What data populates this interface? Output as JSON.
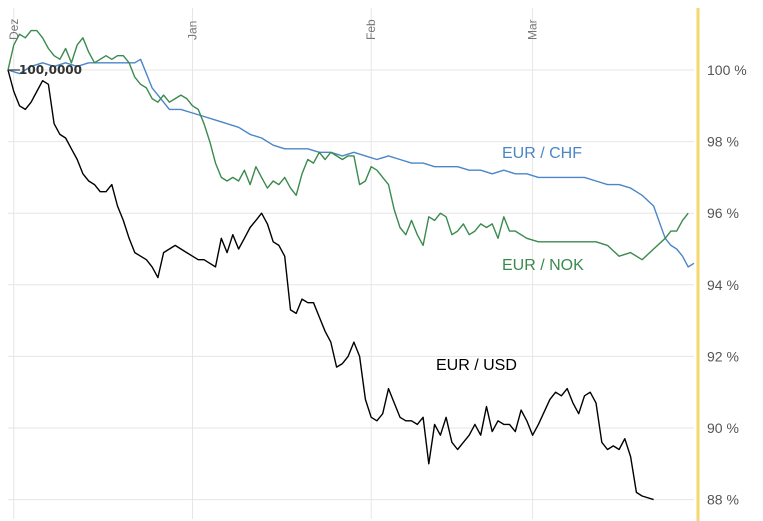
{
  "chart_data": {
    "type": "line",
    "y_unit": "%",
    "ylim": [
      87.5,
      101.5
    ],
    "yticks": [
      {
        "value": 100,
        "label": "100 %"
      },
      {
        "value": 98,
        "label": "98 %"
      },
      {
        "value": 96,
        "label": "96 %"
      },
      {
        "value": 94,
        "label": "94 %"
      },
      {
        "value": 92,
        "label": "92 %"
      },
      {
        "value": 90,
        "label": "90 %"
      },
      {
        "value": 88,
        "label": "88 %"
      }
    ],
    "x_month_labels": [
      {
        "day": 1,
        "label": "Dez"
      },
      {
        "day": 32,
        "label": "Jan"
      },
      {
        "day": 63,
        "label": "Feb"
      },
      {
        "day": 91,
        "label": "Mar"
      }
    ],
    "x_range_days": [
      0,
      119
    ],
    "start_value_label": "100,0000",
    "grid": true,
    "highlight_line_color": "#f5d76e",
    "series": [
      {
        "name": "EUR / CHF",
        "color": "#4a86c8",
        "points": [
          [
            0,
            100
          ],
          [
            2,
            99.9
          ],
          [
            4,
            100.1
          ],
          [
            6,
            100.2
          ],
          [
            8,
            100.1
          ],
          [
            10,
            100.2
          ],
          [
            12,
            100.1
          ],
          [
            14,
            100.2
          ],
          [
            16,
            100.2
          ],
          [
            18,
            100.2
          ],
          [
            20,
            100.2
          ],
          [
            22,
            100.2
          ],
          [
            23,
            100.3
          ],
          [
            24,
            99.9
          ],
          [
            25,
            99.5
          ],
          [
            26,
            99.3
          ],
          [
            27,
            99.1
          ],
          [
            28,
            98.9
          ],
          [
            30,
            98.9
          ],
          [
            32,
            98.8
          ],
          [
            34,
            98.7
          ],
          [
            36,
            98.6
          ],
          [
            38,
            98.5
          ],
          [
            40,
            98.4
          ],
          [
            42,
            98.2
          ],
          [
            44,
            98.1
          ],
          [
            46,
            97.9
          ],
          [
            48,
            97.8
          ],
          [
            50,
            97.8
          ],
          [
            52,
            97.8
          ],
          [
            54,
            97.7
          ],
          [
            56,
            97.7
          ],
          [
            58,
            97.6
          ],
          [
            60,
            97.7
          ],
          [
            62,
            97.6
          ],
          [
            64,
            97.5
          ],
          [
            66,
            97.6
          ],
          [
            68,
            97.5
          ],
          [
            70,
            97.4
          ],
          [
            72,
            97.4
          ],
          [
            74,
            97.3
          ],
          [
            76,
            97.3
          ],
          [
            78,
            97.3
          ],
          [
            80,
            97.2
          ],
          [
            82,
            97.2
          ],
          [
            84,
            97.1
          ],
          [
            86,
            97.2
          ],
          [
            88,
            97.1
          ],
          [
            90,
            97.1
          ],
          [
            92,
            97.0
          ],
          [
            94,
            97.0
          ],
          [
            96,
            97.0
          ],
          [
            98,
            97.0
          ],
          [
            100,
            97.0
          ],
          [
            102,
            96.9
          ],
          [
            104,
            96.8
          ],
          [
            106,
            96.8
          ],
          [
            108,
            96.7
          ],
          [
            110,
            96.5
          ],
          [
            112,
            96.2
          ],
          [
            114,
            95.3
          ],
          [
            115,
            95.1
          ],
          [
            116,
            95.0
          ],
          [
            117,
            94.8
          ],
          [
            118,
            94.5
          ],
          [
            119,
            94.6
          ]
        ]
      },
      {
        "name": "EUR / NOK",
        "color": "#3a8a4e",
        "points": [
          [
            0,
            100
          ],
          [
            1,
            100.7
          ],
          [
            2,
            101
          ],
          [
            3,
            100.9
          ],
          [
            4,
            101.1
          ],
          [
            5,
            101.1
          ],
          [
            6,
            100.9
          ],
          [
            7,
            100.6
          ],
          [
            8,
            100.4
          ],
          [
            9,
            100.3
          ],
          [
            10,
            100.6
          ],
          [
            11,
            100.2
          ],
          [
            12,
            100.7
          ],
          [
            13,
            100.9
          ],
          [
            14,
            100.5
          ],
          [
            15,
            100.2
          ],
          [
            16,
            100.3
          ],
          [
            17,
            100.4
          ],
          [
            18,
            100.3
          ],
          [
            19,
            100.4
          ],
          [
            20,
            100.4
          ],
          [
            21,
            100.2
          ],
          [
            22,
            99.8
          ],
          [
            23,
            99.6
          ],
          [
            24,
            99.5
          ],
          [
            25,
            99.2
          ],
          [
            26,
            99.1
          ],
          [
            27,
            99.3
          ],
          [
            28,
            99.1
          ],
          [
            29,
            99.2
          ],
          [
            30,
            99.3
          ],
          [
            31,
            99.2
          ],
          [
            32,
            99.0
          ],
          [
            33,
            98.9
          ],
          [
            34,
            98.5
          ],
          [
            35,
            98.0
          ],
          [
            36,
            97.4
          ],
          [
            37,
            97.0
          ],
          [
            38,
            96.9
          ],
          [
            39,
            97.0
          ],
          [
            40,
            96.9
          ],
          [
            41,
            97.2
          ],
          [
            42,
            96.8
          ],
          [
            43,
            97.3
          ],
          [
            44,
            97.0
          ],
          [
            45,
            96.7
          ],
          [
            46,
            96.9
          ],
          [
            47,
            96.8
          ],
          [
            48,
            97.0
          ],
          [
            49,
            96.7
          ],
          [
            50,
            96.5
          ],
          [
            51,
            97.1
          ],
          [
            52,
            97.5
          ],
          [
            53,
            97.4
          ],
          [
            54,
            97.7
          ],
          [
            55,
            97.5
          ],
          [
            56,
            97.7
          ],
          [
            57,
            97.6
          ],
          [
            58,
            97.5
          ],
          [
            59,
            97.6
          ],
          [
            60,
            97.6
          ],
          [
            61,
            96.8
          ],
          [
            62,
            96.9
          ],
          [
            63,
            97.3
          ],
          [
            64,
            97.2
          ],
          [
            65,
            97.0
          ],
          [
            66,
            96.8
          ],
          [
            67,
            96.1
          ],
          [
            68,
            95.6
          ],
          [
            69,
            95.4
          ],
          [
            70,
            95.8
          ],
          [
            71,
            95.4
          ],
          [
            72,
            95.1
          ],
          [
            73,
            95.9
          ],
          [
            74,
            95.8
          ],
          [
            75,
            96.0
          ],
          [
            76,
            95.9
          ],
          [
            77,
            95.4
          ],
          [
            78,
            95.5
          ],
          [
            79,
            95.7
          ],
          [
            80,
            95.4
          ],
          [
            81,
            95.5
          ],
          [
            82,
            95.7
          ],
          [
            83,
            95.6
          ],
          [
            84,
            95.7
          ],
          [
            85,
            95.3
          ],
          [
            86,
            95.9
          ],
          [
            87,
            95.5
          ],
          [
            88,
            95.5
          ],
          [
            90,
            95.3
          ],
          [
            92,
            95.2
          ],
          [
            94,
            95.2
          ],
          [
            96,
            95.2
          ],
          [
            98,
            95.2
          ],
          [
            100,
            95.2
          ],
          [
            102,
            95.2
          ],
          [
            104,
            95.1
          ],
          [
            106,
            94.8
          ],
          [
            108,
            94.9
          ],
          [
            110,
            94.7
          ],
          [
            112,
            95.0
          ],
          [
            114,
            95.3
          ],
          [
            115,
            95.5
          ],
          [
            116,
            95.5
          ],
          [
            117,
            95.8
          ],
          [
            118,
            96.0
          ]
        ]
      },
      {
        "name": "EUR / USD",
        "color": "#000000",
        "points": [
          [
            0,
            100
          ],
          [
            1,
            99.4
          ],
          [
            2,
            99.0
          ],
          [
            3,
            98.9
          ],
          [
            4,
            99.1
          ],
          [
            5,
            99.4
          ],
          [
            6,
            99.7
          ],
          [
            7,
            99.6
          ],
          [
            8,
            98.5
          ],
          [
            9,
            98.2
          ],
          [
            10,
            98.1
          ],
          [
            11,
            97.8
          ],
          [
            12,
            97.5
          ],
          [
            13,
            97.1
          ],
          [
            14,
            96.9
          ],
          [
            15,
            96.8
          ],
          [
            16,
            96.6
          ],
          [
            17,
            96.6
          ],
          [
            18,
            96.8
          ],
          [
            19,
            96.2
          ],
          [
            20,
            95.8
          ],
          [
            21,
            95.3
          ],
          [
            22,
            94.9
          ],
          [
            23,
            94.8
          ],
          [
            24,
            94.7
          ],
          [
            25,
            94.5
          ],
          [
            26,
            94.2
          ],
          [
            27,
            94.9
          ],
          [
            28,
            95.0
          ],
          [
            29,
            95.1
          ],
          [
            30,
            95.0
          ],
          [
            31,
            94.9
          ],
          [
            32,
            94.8
          ],
          [
            33,
            94.7
          ],
          [
            34,
            94.7
          ],
          [
            35,
            94.6
          ],
          [
            36,
            94.5
          ],
          [
            37,
            95.3
          ],
          [
            38,
            94.9
          ],
          [
            39,
            95.4
          ],
          [
            40,
            95.0
          ],
          [
            41,
            95.3
          ],
          [
            42,
            95.6
          ],
          [
            43,
            95.8
          ],
          [
            44,
            96.0
          ],
          [
            45,
            95.7
          ],
          [
            46,
            95.2
          ],
          [
            47,
            95.1
          ],
          [
            48,
            94.8
          ],
          [
            49,
            93.3
          ],
          [
            50,
            93.2
          ],
          [
            51,
            93.6
          ],
          [
            52,
            93.5
          ],
          [
            53,
            93.5
          ],
          [
            54,
            93.1
          ],
          [
            55,
            92.7
          ],
          [
            56,
            92.4
          ],
          [
            57,
            91.7
          ],
          [
            58,
            91.8
          ],
          [
            59,
            92.0
          ],
          [
            60,
            92.4
          ],
          [
            61,
            92.0
          ],
          [
            62,
            90.8
          ],
          [
            63,
            90.3
          ],
          [
            64,
            90.2
          ],
          [
            65,
            90.4
          ],
          [
            66,
            91.1
          ],
          [
            67,
            90.7
          ],
          [
            68,
            90.3
          ],
          [
            69,
            90.2
          ],
          [
            70,
            90.2
          ],
          [
            71,
            90.1
          ],
          [
            72,
            90.3
          ],
          [
            73,
            89.0
          ],
          [
            74,
            90.1
          ],
          [
            75,
            89.8
          ],
          [
            76,
            90.3
          ],
          [
            77,
            89.6
          ],
          [
            78,
            89.4
          ],
          [
            79,
            89.6
          ],
          [
            80,
            89.8
          ],
          [
            81,
            90.1
          ],
          [
            82,
            89.8
          ],
          [
            83,
            90.6
          ],
          [
            84,
            89.9
          ],
          [
            85,
            90.2
          ],
          [
            86,
            90.1
          ],
          [
            87,
            90.1
          ],
          [
            88,
            89.9
          ],
          [
            89,
            90.5
          ],
          [
            90,
            90.2
          ],
          [
            91,
            89.8
          ],
          [
            92,
            90.1
          ],
          [
            94,
            90.8
          ],
          [
            95,
            91.0
          ],
          [
            96,
            90.9
          ],
          [
            97,
            91.1
          ],
          [
            98,
            90.7
          ],
          [
            99,
            90.4
          ],
          [
            100,
            90.9
          ],
          [
            101,
            91.0
          ],
          [
            102,
            90.7
          ],
          [
            103,
            89.6
          ],
          [
            104,
            89.4
          ],
          [
            105,
            89.5
          ],
          [
            106,
            89.4
          ],
          [
            107,
            89.7
          ],
          [
            108,
            89.2
          ],
          [
            109,
            88.2
          ],
          [
            110,
            88.1
          ],
          [
            112,
            88.0
          ]
        ]
      }
    ]
  }
}
